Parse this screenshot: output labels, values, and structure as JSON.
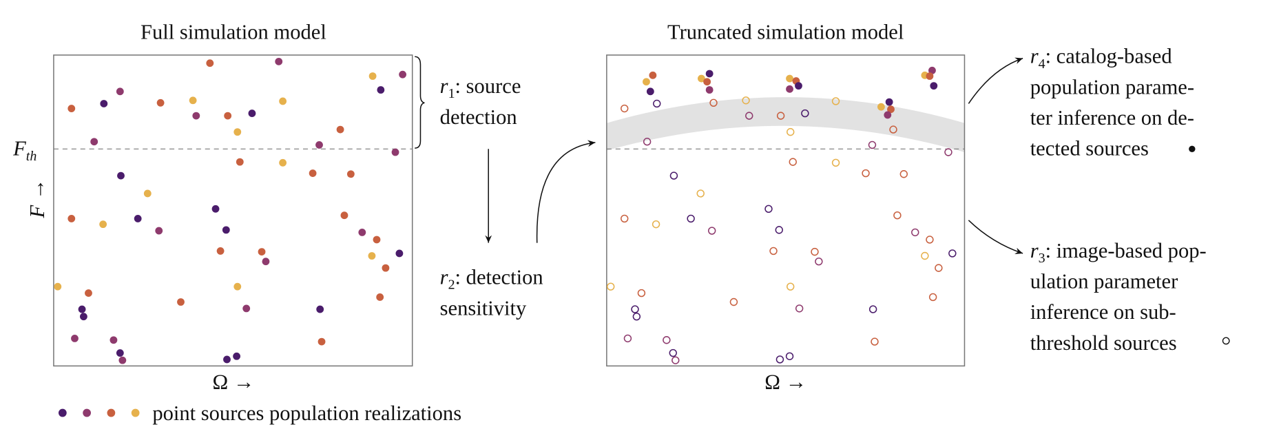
{
  "panels": [
    {
      "title": "Full simulation model",
      "x_label": "Ω →"
    },
    {
      "title": "Truncated simulation model",
      "x_label": "Ω →"
    }
  ],
  "y_label": "F →",
  "threshold": {
    "symbol": "F",
    "subscript": "th"
  },
  "annotations": [
    {
      "symbol": "r",
      "index": "1",
      "lines": [
        ": source",
        "detection"
      ]
    },
    {
      "symbol": "r",
      "index": "2",
      "lines": [
        ": detection",
        "sensitivity"
      ]
    },
    {
      "symbol": "r",
      "index": "4",
      "lines": [
        ": catalog-based",
        "population parame-",
        "ter inference on de-",
        "tected sources"
      ]
    },
    {
      "symbol": "r",
      "index": "3",
      "lines": [
        ": image-based pop-",
        "ulation parameter",
        "inference on sub-",
        "threshold sources"
      ]
    }
  ],
  "legend": "point sources population realizations"
}
